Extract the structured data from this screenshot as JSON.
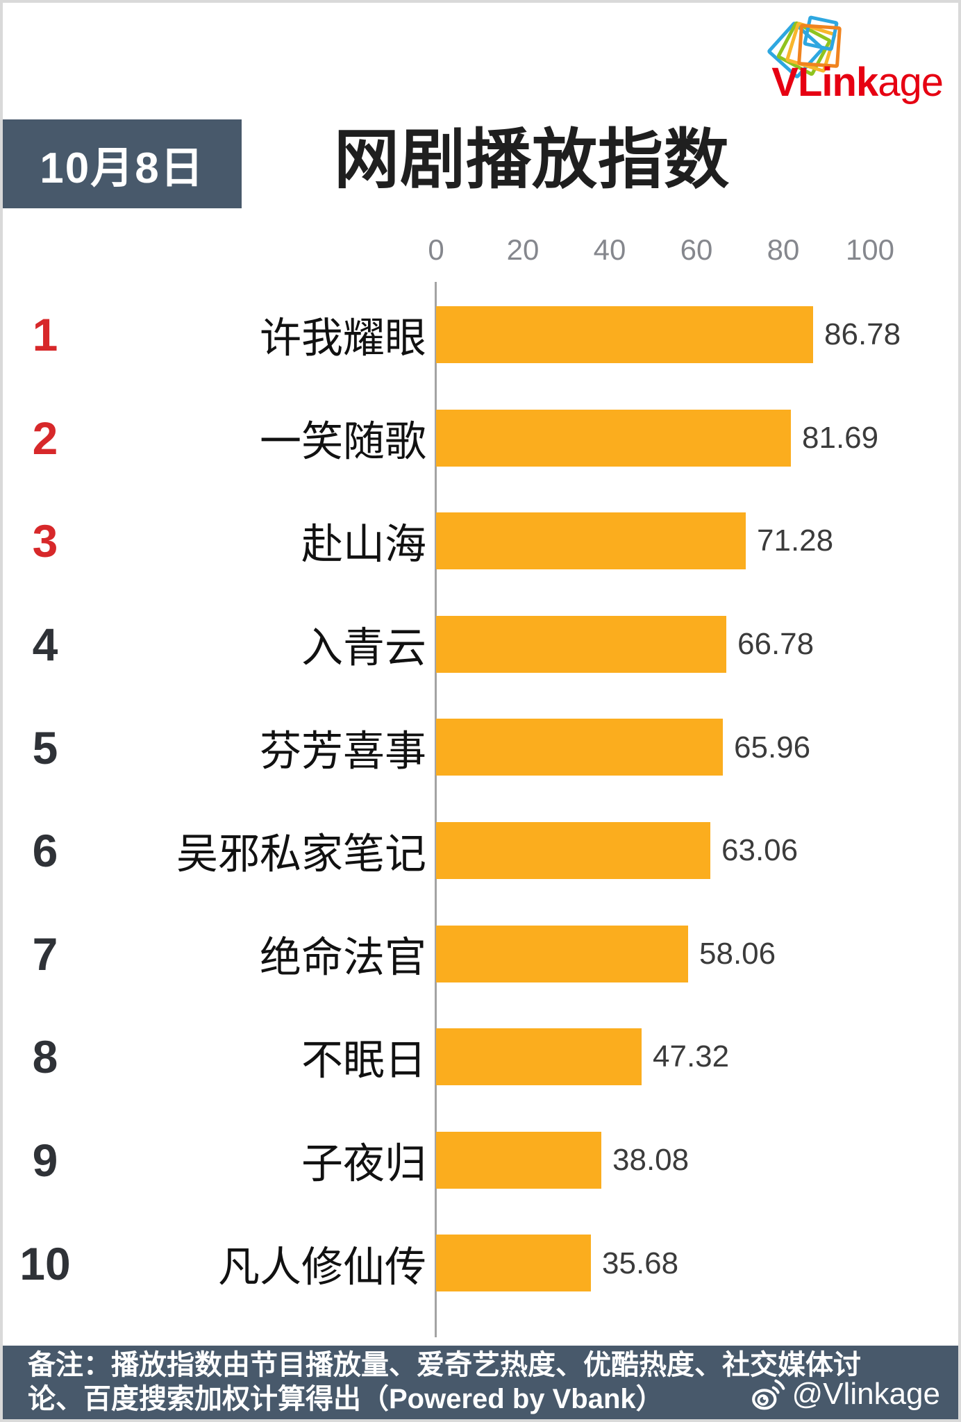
{
  "logo": {
    "text_bold": "VLink",
    "text_regular": "age",
    "icon": "stacked-cards-icon"
  },
  "header": {
    "date_badge": "10月8日",
    "title": "网剧播放指数"
  },
  "axis": {
    "ticks": [
      "0",
      "20",
      "40",
      "60",
      "80",
      "100"
    ]
  },
  "chart_data": {
    "type": "bar",
    "orientation": "horizontal",
    "title": "网剧播放指数",
    "date": "10月8日",
    "categories": [
      "许我耀眼",
      "一笑随歌",
      "赴山海",
      "入青云",
      "芬芳喜事",
      "吴邪私家笔记",
      "绝命法官",
      "不眠日",
      "子夜归",
      "凡人修仙传"
    ],
    "values": [
      86.78,
      81.69,
      71.28,
      66.78,
      65.96,
      63.06,
      58.06,
      47.32,
      38.08,
      35.68
    ],
    "xlim": [
      0,
      100
    ],
    "xticks": [
      0,
      20,
      40,
      60,
      80,
      100
    ],
    "grid": false,
    "legend": false,
    "bar_color": "#FBAD1E"
  },
  "rows": [
    {
      "rank": "1",
      "title": "许我耀眼",
      "value": "86.78"
    },
    {
      "rank": "2",
      "title": "一笑随歌",
      "value": "81.69"
    },
    {
      "rank": "3",
      "title": "赴山海",
      "value": "71.28"
    },
    {
      "rank": "4",
      "title": "入青云",
      "value": "66.78"
    },
    {
      "rank": "5",
      "title": "芬芳喜事",
      "value": "65.96"
    },
    {
      "rank": "6",
      "title": "吴邪私家笔记",
      "value": "63.06"
    },
    {
      "rank": "7",
      "title": "绝命法官",
      "value": "58.06"
    },
    {
      "rank": "8",
      "title": "不眠日",
      "value": "47.32"
    },
    {
      "rank": "9",
      "title": "子夜归",
      "value": "38.08"
    },
    {
      "rank": "10",
      "title": "凡人修仙传",
      "value": "35.68"
    }
  ],
  "footer": {
    "note": "备注：播放指数由节目播放量、爱奇艺热度、优酷热度、社交媒体讨论、百度搜索加权计算得出（Powered by Vbank）",
    "weibo_handle": "@Vlinkage",
    "weibo_icon": "weibo-icon"
  },
  "colors": {
    "bar": "#FBAD1E",
    "rank_top3": "#D7282A",
    "rank_rest": "#2F3237",
    "slate": "#48596B",
    "logo_red": "#E60012",
    "tick": "#85878D",
    "value_text": "#3B3B3B"
  }
}
